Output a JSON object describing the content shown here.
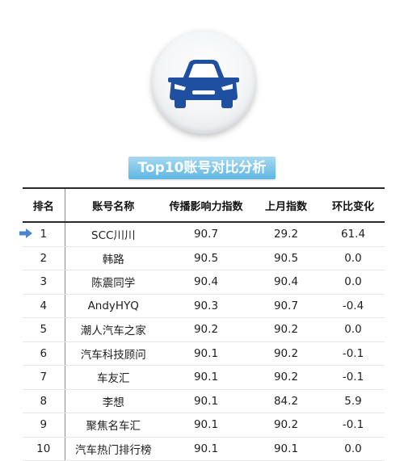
{
  "icon": "car-icon",
  "title": "Top10账号对比分析",
  "colors": {
    "accent_blue": "#5fb6e3",
    "car_blue": "#1f4fa0",
    "up": "#b22a2a",
    "down": "#2e9a36"
  },
  "table": {
    "headers": [
      "排名",
      "账号名称",
      "传播影响力指数",
      "上月指数",
      "环比变化"
    ],
    "rows": [
      {
        "rank": "1",
        "name": "SCC川川",
        "index": "90.7",
        "last": "29.2",
        "change": "61.4",
        "trend": "up"
      },
      {
        "rank": "2",
        "name": "韩路",
        "index": "90.5",
        "last": "90.5",
        "change": "0.0",
        "trend": "flat"
      },
      {
        "rank": "3",
        "name": "陈震同学",
        "index": "90.4",
        "last": "90.4",
        "change": "0.0",
        "trend": "flat"
      },
      {
        "rank": "4",
        "name": "AndyHYQ",
        "index": "90.3",
        "last": "90.7",
        "change": "-0.4",
        "trend": "down"
      },
      {
        "rank": "5",
        "name": "潮人汽车之家",
        "index": "90.2",
        "last": "90.2",
        "change": "0.0",
        "trend": "flat"
      },
      {
        "rank": "6",
        "name": "汽车科技顾问",
        "index": "90.1",
        "last": "90.2",
        "change": "-0.1",
        "trend": "down"
      },
      {
        "rank": "7",
        "name": "车友汇",
        "index": "90.1",
        "last": "90.2",
        "change": "-0.1",
        "trend": "down"
      },
      {
        "rank": "8",
        "name": "李想",
        "index": "90.1",
        "last": "84.2",
        "change": "5.9",
        "trend": "up"
      },
      {
        "rank": "9",
        "name": "聚焦名车汇",
        "index": "90.1",
        "last": "90.2",
        "change": "-0.1",
        "trend": "down"
      },
      {
        "rank": "10",
        "name": "汽车热门排行榜",
        "index": "90.1",
        "last": "90.1",
        "change": "0.0",
        "trend": "flat"
      }
    ]
  }
}
